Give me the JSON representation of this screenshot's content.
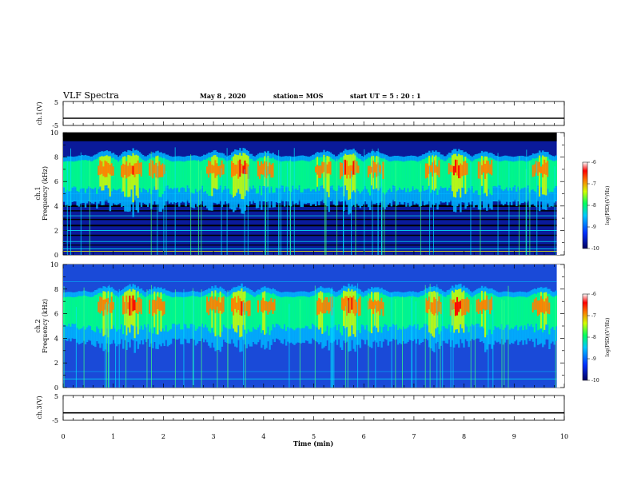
{
  "header": {
    "title": "VLF Spectra",
    "date": "May 8 , 2020",
    "station": "station= MOS",
    "start": "start UT = 5 : 20 : 1"
  },
  "colors": {
    "spectrogram_bg": "#0a1a9a",
    "colormap": [
      "#00007a",
      "#0030ff",
      "#00b4ff",
      "#00ff80",
      "#c8ff00",
      "#ff8000",
      "#ff0000",
      "#ffffff"
    ]
  },
  "chart_data": [
    {
      "type": "line",
      "name": "ch1-voltage",
      "ylabel": "ch.1(V)",
      "ylim": [
        -5,
        5
      ],
      "yticks": [
        "5",
        "-5"
      ],
      "xlim": [
        0,
        10
      ],
      "x": [
        0,
        10
      ],
      "y": [
        -2,
        -2
      ]
    },
    {
      "type": "heatmap",
      "name": "ch1-spectrogram",
      "ylabel": "ch.1 Frequency (kHz)",
      "xlim": [
        0,
        10
      ],
      "ylim": [
        0,
        10
      ],
      "yticks": [
        "0",
        "2",
        "4",
        "6",
        "8",
        "10"
      ],
      "data_end_min": 9.85,
      "noise_floor_top_khz": 9.3,
      "emission_band_khz": [
        4.5,
        8.8
      ],
      "peak_band_khz": [
        6.2,
        7.8
      ],
      "colorbar": {
        "label": "log(PSD)(V²/Hz)",
        "ticks": [
          "-6",
          "-7",
          "-8",
          "-9",
          "-10"
        ],
        "range": [
          -10,
          -6
        ]
      }
    },
    {
      "type": "heatmap",
      "name": "ch2-spectrogram",
      "ylabel": "ch.2 Frequency (kHz)",
      "xlim": [
        0,
        10
      ],
      "ylim": [
        0,
        10
      ],
      "yticks": [
        "0",
        "2",
        "4",
        "6",
        "8",
        "10"
      ],
      "data_end_min": 9.85,
      "emission_band_khz": [
        4.0,
        8.5
      ],
      "peak_band_khz": [
        5.8,
        7.5
      ],
      "colorbar": {
        "label": "log(PSD)(V²/Hz)",
        "ticks": [
          "-6",
          "-7",
          "-8",
          "-9",
          "-10"
        ],
        "range": [
          -10,
          -6
        ]
      }
    },
    {
      "type": "line",
      "name": "ch3-voltage",
      "ylabel": "ch.3(V)",
      "ylim": [
        -5,
        5
      ],
      "yticks": [
        "5",
        "-5"
      ],
      "xlim": [
        0,
        10
      ],
      "x": [
        0,
        10
      ],
      "y": [
        -2,
        -2
      ]
    }
  ],
  "xaxis": {
    "label": "Time (min)",
    "ticks": [
      "0",
      "1",
      "2",
      "3",
      "4",
      "5",
      "6",
      "7",
      "8",
      "9",
      "10"
    ]
  }
}
